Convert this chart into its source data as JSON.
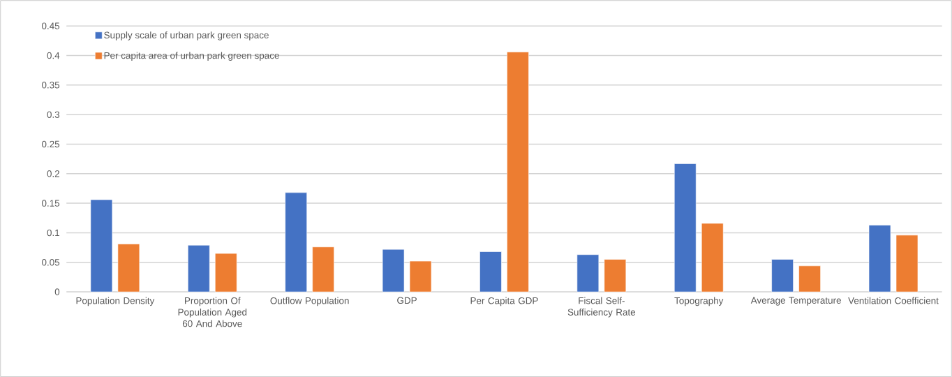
{
  "chart_data": {
    "type": "bar",
    "categories": [
      "Population Density",
      "Proportion Of Population Aged 60 And Above",
      "Outflow Population",
      "GDP",
      "Per Capita GDP",
      "Fiscal Self-Sufficiency Rate",
      "Topography",
      "Average Temperature",
      "Ventilation Coefficient"
    ],
    "series": [
      {
        "name": "Supply scale of urban park green space",
        "color": "#4472c4",
        "values": [
          0.156,
          0.079,
          0.168,
          0.072,
          0.068,
          0.063,
          0.217,
          0.055,
          0.113
        ]
      },
      {
        "name": "Per capita area of urban park green space",
        "color": "#ed7d31",
        "values": [
          0.081,
          0.065,
          0.076,
          0.052,
          0.406,
          0.055,
          0.116,
          0.044,
          0.096
        ]
      }
    ],
    "ylim": [
      0,
      0.45
    ],
    "yticks": [
      0,
      0.05,
      0.1,
      0.15,
      0.2,
      0.25,
      0.3,
      0.35,
      0.4,
      0.45
    ],
    "grid": "y",
    "legend": "top left"
  }
}
